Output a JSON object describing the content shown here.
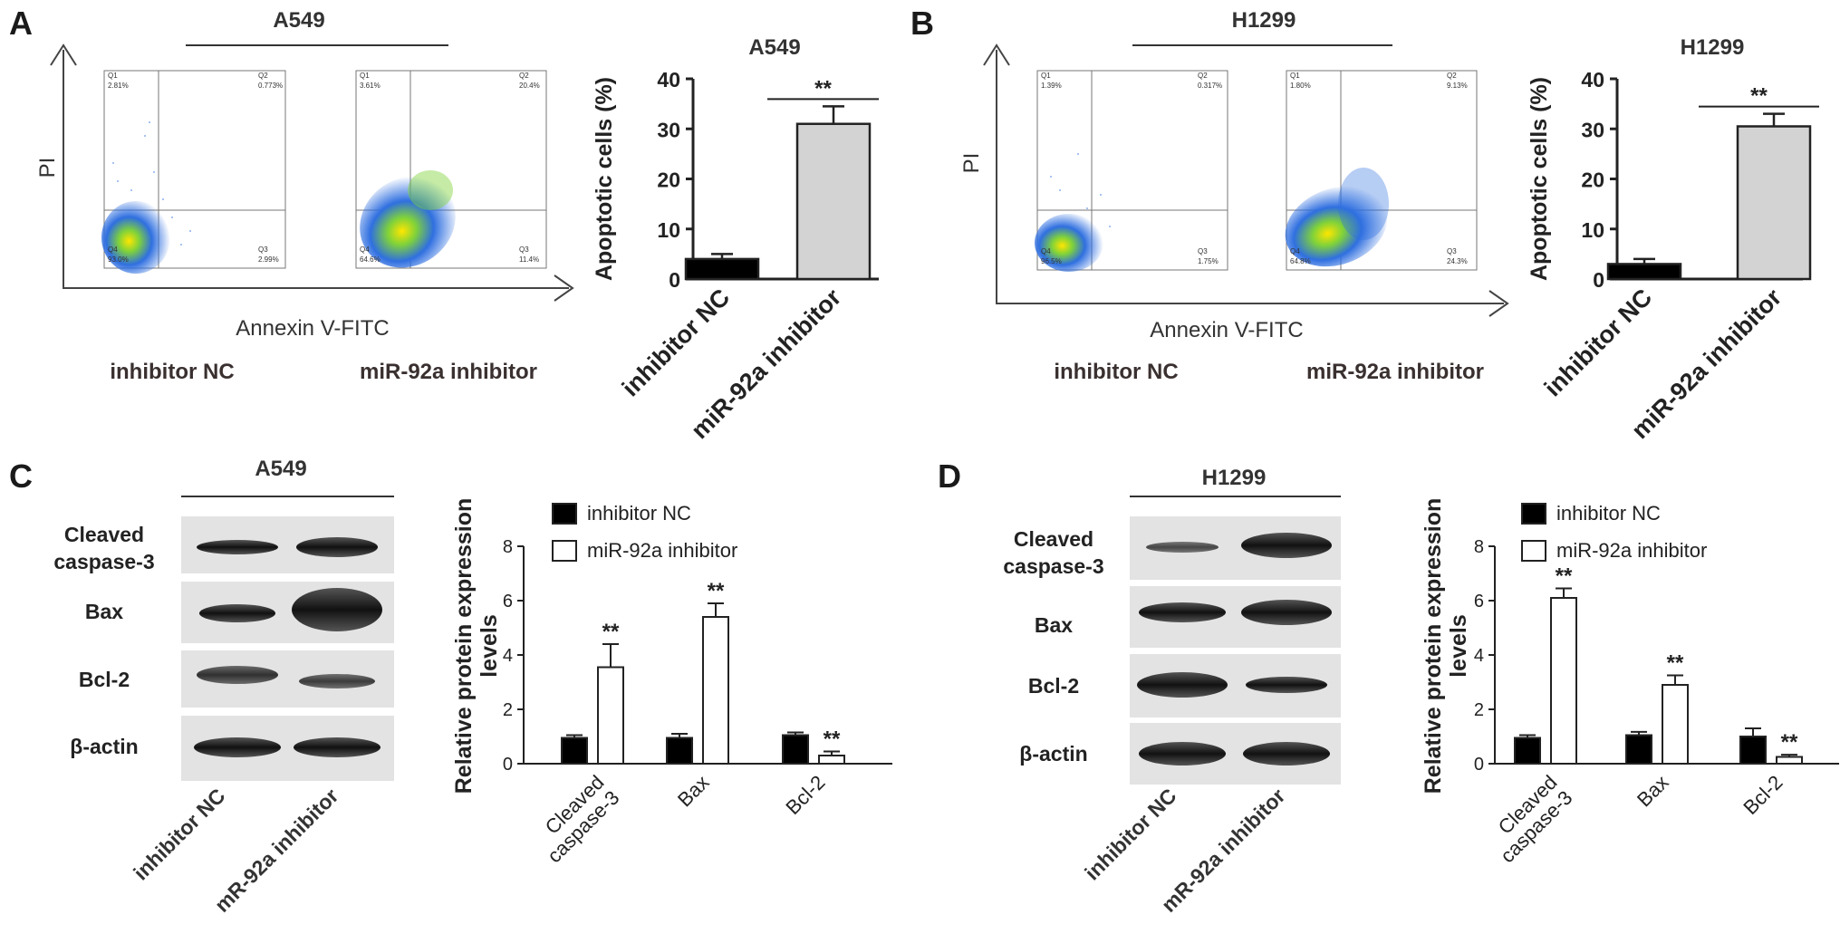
{
  "panels": {
    "A": {
      "letter": "A",
      "cell_line": "A549",
      "flow_axis_y": "PI",
      "flow_axis_x": "Annexin V-FITC",
      "groups": [
        "inhibitor NC",
        "miR-92a inhibitor"
      ],
      "flow_plots": [
        {
          "q1": "Q1",
          "q1_val": "2.81%",
          "q2": "Q2",
          "q2_val": "0.773%",
          "q3": "Q3",
          "q3_val": "2.99%",
          "q4": "Q4",
          "q4_val": "93.0%"
        },
        {
          "q1": "Q1",
          "q1_val": "3.61%",
          "q2": "Q2",
          "q2_val": "20.4%",
          "q3": "Q3",
          "q3_val": "11.4%",
          "q4": "Q4",
          "q4_val": "64.6%"
        }
      ]
    },
    "B": {
      "letter": "B",
      "cell_line": "H1299",
      "flow_axis_y": "PI",
      "flow_axis_x": "Annexin V-FITC",
      "groups": [
        "inhibitor NC",
        "miR-92a inhibitor"
      ],
      "flow_plots": [
        {
          "q1": "Q1",
          "q1_val": "1.39%",
          "q2": "Q2",
          "q2_val": "0.317%",
          "q3": "Q3",
          "q3_val": "1.75%",
          "q4": "Q4",
          "q4_val": "96.5%"
        },
        {
          "q1": "Q1",
          "q1_val": "1.80%",
          "q2": "Q2",
          "q2_val": "9.13%",
          "q3": "Q3",
          "q3_val": "24.3%",
          "q4": "Q4",
          "q4_val": "64.8%"
        }
      ]
    },
    "C": {
      "letter": "C",
      "cell_line": "A549",
      "blot_rows": [
        "Cleaved\ncaspase-3",
        "Bax",
        "Bcl-2",
        "β-actin"
      ],
      "lanes": [
        "inhibitor NC",
        "mR-92a inhibitor"
      ]
    },
    "D": {
      "letter": "D",
      "cell_line": "H1299",
      "blot_rows": [
        "Cleaved\ncaspase-3",
        "Bax",
        "Bcl-2",
        "β-actin"
      ],
      "lanes": [
        "inhibitor NC",
        "mR-92a inhibitor"
      ]
    }
  },
  "chart_data": [
    {
      "panel": "A",
      "type": "bar",
      "title": "A549",
      "ylabel": "Apoptotic cells (%)",
      "ylim": [
        0,
        40
      ],
      "yticks": [
        0,
        10,
        20,
        30,
        40
      ],
      "categories": [
        "inhibitor NC",
        "miR-92a inhibitor"
      ],
      "values": [
        4.0,
        31.0
      ],
      "errors": [
        1.0,
        3.5
      ],
      "colors": [
        "#000000",
        "#d3d3d3"
      ],
      "significance": "**"
    },
    {
      "panel": "B",
      "type": "bar",
      "title": "H1299",
      "ylabel": "Apoptotic cells (%)",
      "ylim": [
        0,
        40
      ],
      "yticks": [
        0,
        10,
        20,
        30,
        40
      ],
      "categories": [
        "inhibitor NC",
        "miR-92a inhibitor"
      ],
      "values": [
        3.0,
        30.5
      ],
      "errors": [
        1.0,
        2.5
      ],
      "colors": [
        "#000000",
        "#d3d3d3"
      ],
      "significance": "**"
    },
    {
      "panel": "C",
      "type": "bar",
      "ylabel": "Relative protein expression levels",
      "ylim": [
        0,
        8
      ],
      "yticks": [
        0,
        2,
        4,
        6,
        8
      ],
      "categories": [
        "Cleaved\ncaspase-3",
        "Bax",
        "Bcl-2"
      ],
      "series": [
        {
          "name": "inhibitor NC",
          "values": [
            0.95,
            0.95,
            1.05
          ],
          "errors": [
            0.1,
            0.15,
            0.1
          ],
          "color": "#000000"
        },
        {
          "name": "miR-92a inhibitor",
          "values": [
            3.55,
            5.4,
            0.3
          ],
          "errors": [
            0.85,
            0.5,
            0.15
          ],
          "color": "#ffffff"
        }
      ],
      "significance": [
        "**",
        "**",
        "**"
      ],
      "legend": "top"
    },
    {
      "panel": "D",
      "type": "bar",
      "ylabel": "Relative protein expression levels",
      "ylim": [
        0,
        8
      ],
      "yticks": [
        0,
        2,
        4,
        6,
        8
      ],
      "categories": [
        "Cleaved\ncaspase-3",
        "Bax",
        "Bcl-2"
      ],
      "series": [
        {
          "name": "inhibitor NC",
          "values": [
            0.95,
            1.05,
            1.0
          ],
          "errors": [
            0.1,
            0.12,
            0.3
          ],
          "color": "#000000"
        },
        {
          "name": "miR-92a inhibitor",
          "values": [
            6.1,
            2.9,
            0.25
          ],
          "errors": [
            0.35,
            0.35,
            0.08
          ],
          "color": "#ffffff"
        }
      ],
      "significance": [
        "**",
        "**",
        "**"
      ],
      "legend": "top"
    }
  ]
}
